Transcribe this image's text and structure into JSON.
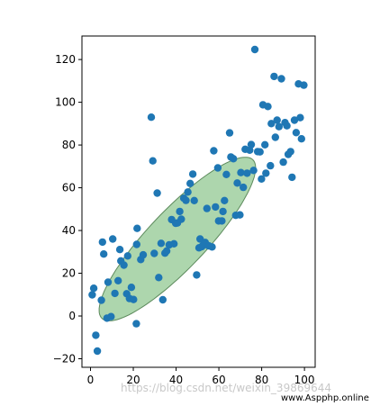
{
  "chart_data": {
    "type": "scatter",
    "title": "",
    "xlabel": "",
    "ylabel": "",
    "xlim": [
      -4,
      105
    ],
    "ylim": [
      -24,
      131
    ],
    "xticks": [
      0,
      20,
      40,
      60,
      80,
      100
    ],
    "yticks": [
      -20,
      0,
      20,
      40,
      60,
      80,
      100,
      120
    ],
    "grid": false,
    "point_color": "#1f77b4",
    "ellipse": {
      "center": [
        40.6,
        36.0
      ],
      "angle_deg": 46.5,
      "semi_axis_major": 51.2,
      "semi_axis_minor": 13.5,
      "fill_color": "#77bb77",
      "fill_opacity": 0.6,
      "edge_color": "#5c8a5c"
    },
    "points": [
      [
        0.8,
        9.9
      ],
      [
        1.5,
        13.0
      ],
      [
        2.5,
        -9.0
      ],
      [
        3.2,
        -16.4
      ],
      [
        5.1,
        7.4
      ],
      [
        5.6,
        34.6
      ],
      [
        6.2,
        29.0
      ],
      [
        7.7,
        -1.0
      ],
      [
        8.2,
        15.8
      ],
      [
        9.6,
        -0.3
      ],
      [
        10.4,
        36.0
      ],
      [
        11.4,
        10.6
      ],
      [
        12.9,
        16.5
      ],
      [
        13.7,
        31.1
      ],
      [
        14.2,
        25.8
      ],
      [
        15.6,
        23.8
      ],
      [
        17.4,
        28.1
      ],
      [
        16.9,
        10.4
      ],
      [
        18.2,
        8.2
      ],
      [
        19.1,
        13.4
      ],
      [
        20.1,
        7.7
      ],
      [
        21.4,
        -3.6
      ],
      [
        21.6,
        33.5
      ],
      [
        21.8,
        41.0
      ],
      [
        23.5,
        26.4
      ],
      [
        24.6,
        28.6
      ],
      [
        28.4,
        93.0
      ],
      [
        29.1,
        72.6
      ],
      [
        29.8,
        29.3
      ],
      [
        31.2,
        57.5
      ],
      [
        31.9,
        18.0
      ],
      [
        33.0,
        34.0
      ],
      [
        33.8,
        7.6
      ],
      [
        34.8,
        29.4
      ],
      [
        35.6,
        30.4
      ],
      [
        36.8,
        33.3
      ],
      [
        37.9,
        45.1
      ],
      [
        39.0,
        33.8
      ],
      [
        39.8,
        43.4
      ],
      [
        40.6,
        43.5
      ],
      [
        41.7,
        48.9
      ],
      [
        42.4,
        45.3
      ],
      [
        43.6,
        55.1
      ],
      [
        44.6,
        54.1
      ],
      [
        45.5,
        58.0
      ],
      [
        46.6,
        62.0
      ],
      [
        47.8,
        66.4
      ],
      [
        48.5,
        54.0
      ],
      [
        49.6,
        19.2
      ],
      [
        50.7,
        31.9
      ],
      [
        51.2,
        36.0
      ],
      [
        51.9,
        32.4
      ],
      [
        52.5,
        32.9
      ],
      [
        53.6,
        34.4
      ],
      [
        54.4,
        50.3
      ],
      [
        55.3,
        32.8
      ],
      [
        56.8,
        32.3
      ],
      [
        57.6,
        77.3
      ],
      [
        58.4,
        51.0
      ],
      [
        59.5,
        69.3
      ],
      [
        59.9,
        44.5
      ],
      [
        61.4,
        44.5
      ],
      [
        61.9,
        48.9
      ],
      [
        62.6,
        54.0
      ],
      [
        63.5,
        66.2
      ],
      [
        65.0,
        85.7
      ],
      [
        65.6,
        74.4
      ],
      [
        66.8,
        73.6
      ],
      [
        67.9,
        47.1
      ],
      [
        68.6,
        62.2
      ],
      [
        69.8,
        47.3
      ],
      [
        70.3,
        67.1
      ],
      [
        71.4,
        60.2
      ],
      [
        72.3,
        78.0
      ],
      [
        73.2,
        66.8
      ],
      [
        74.4,
        77.6
      ],
      [
        75.1,
        80.2
      ],
      [
        76.2,
        68.1
      ],
      [
        76.8,
        124.7
      ],
      [
        78.1,
        76.9
      ],
      [
        79.2,
        76.8
      ],
      [
        79.9,
        64.1
      ],
      [
        80.6,
        98.8
      ],
      [
        81.5,
        80.1
      ],
      [
        82.0,
        66.8
      ],
      [
        82.9,
        98.0
      ],
      [
        84.1,
        70.3
      ],
      [
        84.5,
        90.0
      ],
      [
        85.8,
        112.1
      ],
      [
        86.4,
        83.6
      ],
      [
        87.2,
        91.6
      ],
      [
        88.1,
        88.6
      ],
      [
        89.2,
        111.0
      ],
      [
        90.1,
        72.0
      ],
      [
        90.9,
        90.5
      ],
      [
        91.8,
        89.0
      ],
      [
        92.4,
        75.6
      ],
      [
        93.5,
        76.9
      ],
      [
        94.2,
        64.9
      ],
      [
        95.3,
        91.6
      ],
      [
        96.1,
        85.8
      ],
      [
        97.2,
        108.6
      ],
      [
        98.0,
        92.8
      ],
      [
        98.6,
        82.9
      ],
      [
        99.7,
        108.0
      ]
    ]
  },
  "watermark": {
    "text": "https://blog.csdn.net/weixin_39869644",
    "site": "www.Aspphp.online"
  }
}
